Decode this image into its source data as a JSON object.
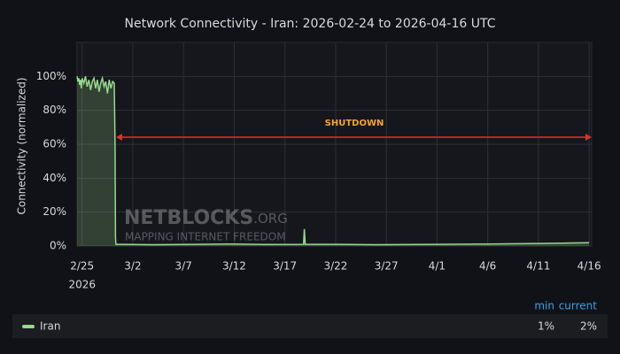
{
  "chart_data": {
    "type": "line",
    "title": "Network Connectivity - Iran: 2026-02-24 to 2026-04-16 UTC",
    "y_label": "Connectivity (normalized)",
    "annotation": "SHUTDOWN",
    "watermark": {
      "name": "NETBLOCKS",
      "suffix": ".ORG",
      "tagline": "MAPPING INTERNET FREEDOM"
    },
    "xlim": [
      "2026-02-24T12:00Z",
      "2026-04-16T06:00Z"
    ],
    "xticks": [
      {
        "value": "2026-02-25T00:00Z",
        "label": "2/25"
      },
      {
        "value": "2026-03-02T00:00Z",
        "label": "3/2"
      },
      {
        "value": "2026-03-07T00:00Z",
        "label": "3/7"
      },
      {
        "value": "2026-03-12T00:00Z",
        "label": "3/12"
      },
      {
        "value": "2026-03-17T00:00Z",
        "label": "3/17"
      },
      {
        "value": "2026-03-22T00:00Z",
        "label": "3/22"
      },
      {
        "value": "2026-03-27T00:00Z",
        "label": "3/27"
      },
      {
        "value": "2026-04-01T00:00Z",
        "label": "4/1"
      },
      {
        "value": "2026-04-06T00:00Z",
        "label": "4/6"
      },
      {
        "value": "2026-04-11T00:00Z",
        "label": "4/11"
      },
      {
        "value": "2026-04-16T00:00Z",
        "label": "4/16"
      }
    ],
    "x_year_label": "2026",
    "ylim": [
      0,
      120
    ],
    "yticks": [
      {
        "value": 0,
        "label": "0%"
      },
      {
        "value": 20,
        "label": "20%"
      },
      {
        "value": 40,
        "label": "40%"
      },
      {
        "value": 60,
        "label": "60%"
      },
      {
        "value": 80,
        "label": "80%"
      },
      {
        "value": 100,
        "label": "100%"
      }
    ],
    "grid": true,
    "x": [
      "2026-02-24T12:00Z",
      "2026-02-24T14:00Z",
      "2026-02-24T16:00Z",
      "2026-02-24T18:00Z",
      "2026-02-24T20:00Z",
      "2026-02-24T22:00Z",
      "2026-02-25T00:00Z",
      "2026-02-25T04:00Z",
      "2026-02-25T08:00Z",
      "2026-02-25T12:00Z",
      "2026-02-25T16:00Z",
      "2026-02-25T20:00Z",
      "2026-02-26T00:00Z",
      "2026-02-26T04:00Z",
      "2026-02-26T08:00Z",
      "2026-02-26T12:00Z",
      "2026-02-26T16:00Z",
      "2026-02-26T20:00Z",
      "2026-02-27T00:00Z",
      "2026-02-27T04:00Z",
      "2026-02-27T08:00Z",
      "2026-02-27T12:00Z",
      "2026-02-27T16:00Z",
      "2026-02-27T20:00Z",
      "2026-02-28T00:00Z",
      "2026-02-28T04:00Z",
      "2026-02-28T06:00Z",
      "2026-02-28T07:00Z",
      "2026-02-28T08:00Z",
      "2026-03-01T00:00Z",
      "2026-03-04T00:00Z",
      "2026-03-08T00:00Z",
      "2026-03-12T00:00Z",
      "2026-03-15T00:00Z",
      "2026-03-18T20:00Z",
      "2026-03-18T22:00Z",
      "2026-03-19T00:00Z",
      "2026-03-22T00:00Z",
      "2026-03-26T00:00Z",
      "2026-04-01T00:00Z",
      "2026-04-06T00:00Z",
      "2026-04-11T00:00Z",
      "2026-04-14T00:00Z",
      "2026-04-16T00:00Z"
    ],
    "series": [
      {
        "name": "Iran",
        "color": "#96d98d",
        "values": [
          100,
          97,
          99,
          95,
          98,
          93,
          99,
          96,
          100,
          94,
          98,
          92,
          97,
          99,
          93,
          98,
          91,
          96,
          99,
          94,
          97,
          90,
          98,
          93,
          97,
          96,
          60,
          5,
          1,
          1,
          0.8,
          1,
          1.2,
          0.9,
          1,
          10,
          1,
          1,
          0.8,
          1,
          1.2,
          1.5,
          1.8,
          2
        ]
      }
    ],
    "legend_stats": {
      "headers": [
        "min",
        "current"
      ],
      "values": [
        1,
        2
      ],
      "value_labels": [
        "1%",
        "2%"
      ]
    }
  }
}
